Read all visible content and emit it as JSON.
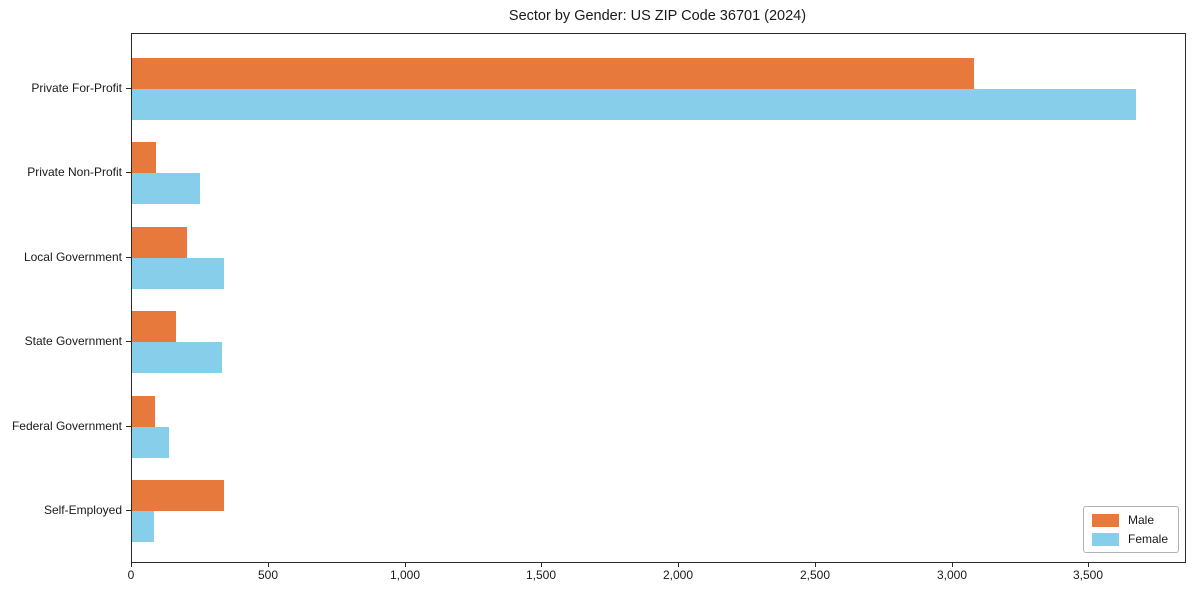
{
  "chart_data": {
    "type": "bar",
    "orientation": "horizontal",
    "title": "Sector by Gender: US ZIP Code 36701 (2024)",
    "categories": [
      "Private For-Profit",
      "Private Non-Profit",
      "Local Government",
      "State Government",
      "Federal Government",
      "Self-Employed"
    ],
    "series": [
      {
        "name": "Male",
        "color": "#E8793D",
        "values": [
          3080,
          86,
          201,
          161,
          84,
          336
        ]
      },
      {
        "name": "Female",
        "color": "#87CEEB",
        "values": [
          3670,
          248,
          337,
          329,
          135,
          82
        ]
      }
    ],
    "xlabel": "",
    "ylabel": "",
    "xlim": [
      0,
      3850
    ],
    "xticks": [
      0,
      500,
      1000,
      1500,
      2000,
      2500,
      3000,
      3500
    ],
    "xtick_labels": [
      "0",
      "500",
      "1,000",
      "1,500",
      "2,000",
      "2,500",
      "3,000",
      "3,500"
    ],
    "grid": false,
    "legend": {
      "position": "lower right",
      "entries": [
        "Male",
        "Female"
      ]
    }
  }
}
